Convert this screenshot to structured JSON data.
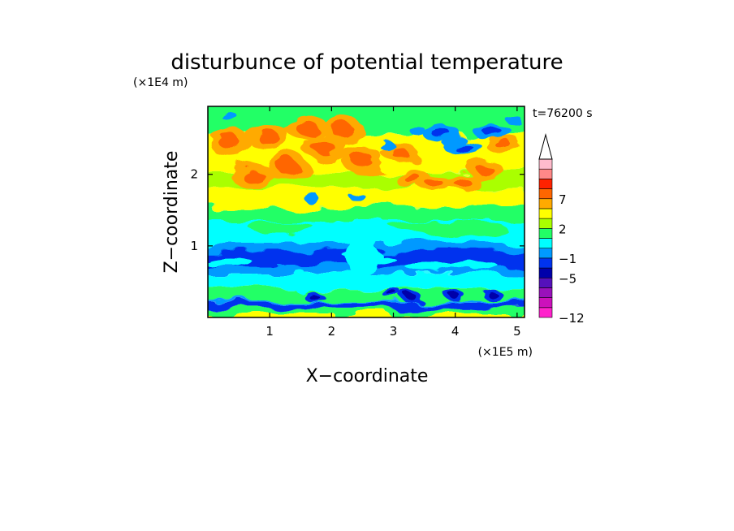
{
  "chart_data": {
    "type": "heatmap",
    "title": "disturbunce of potential temperature",
    "time_label": "t=76200 s",
    "xlabel": "X−coordinate",
    "ylabel": "Z−coordinate",
    "x_unit_label": "(×1E5 m)",
    "y_unit_label": "(×1E4 m)",
    "xlim": [
      0,
      5.12
    ],
    "ylim": [
      0,
      2.95
    ],
    "x_ticks": [
      1,
      2,
      3,
      4,
      5
    ],
    "y_ticks": [
      1,
      2
    ],
    "colorbar": {
      "levels": [
        -12,
        -10,
        -8,
        -6,
        -5,
        -3,
        -1,
        0,
        1,
        2,
        4,
        6,
        7,
        9,
        11
      ],
      "tick_labels": [
        "−12",
        "−5",
        "−1",
        "2",
        "7"
      ],
      "extend": "max",
      "colors": [
        "#ff22cc",
        "#cc11bb",
        "#9911bb",
        "#5511bb",
        "#0000aa",
        "#0033ee",
        "#0099ff",
        "#00ffff",
        "#22ff66",
        "#aaff00",
        "#ffff00",
        "#ffaa00",
        "#ff6600",
        "#ff2200",
        "#ff8888",
        "#ffbbcc"
      ]
    },
    "grid": "off",
    "legend": "right (colorbar)"
  }
}
